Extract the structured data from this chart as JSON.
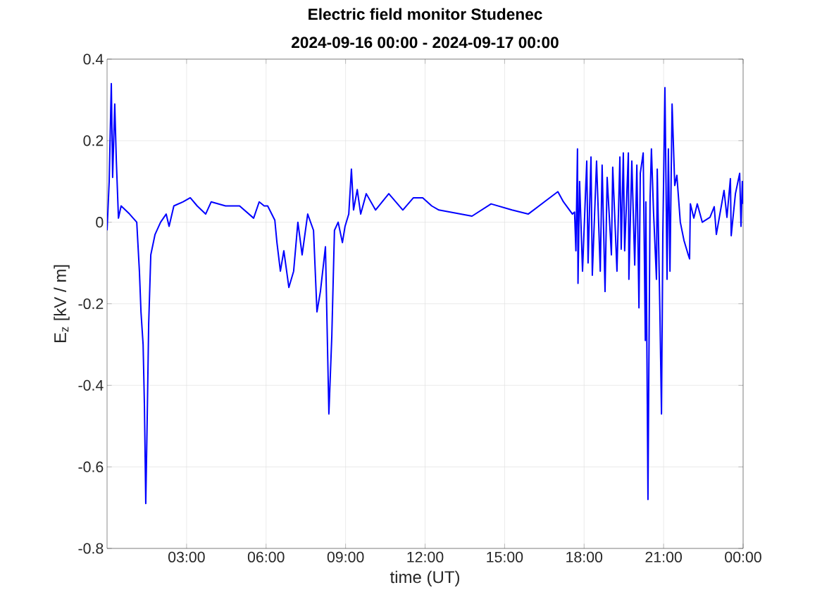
{
  "chart_data": {
    "type": "line",
    "title": "Electric field monitor Studenec",
    "subtitle": "2024-09-16 00:00 - 2024-09-17 00:00",
    "xlabel": "time (UT)",
    "ylabel": "E$_{z}$ [kV / m]",
    "xlim": [
      0,
      24
    ],
    "ylim": [
      -0.8,
      0.4
    ],
    "xticks": [
      {
        "value": 3,
        "label": "03:00"
      },
      {
        "value": 6,
        "label": "06:00"
      },
      {
        "value": 9,
        "label": "09:00"
      },
      {
        "value": 12,
        "label": "12:00"
      },
      {
        "value": 15,
        "label": "15:00"
      },
      {
        "value": 18,
        "label": "18:00"
      },
      {
        "value": 21,
        "label": "21:00"
      },
      {
        "value": 24,
        "label": "00:00"
      }
    ],
    "yticks": [
      -0.8,
      -0.6,
      -0.4,
      -0.2,
      0,
      0.2,
      0.4
    ],
    "grid": true,
    "marker": "none",
    "line_style": "solid",
    "series": [
      {
        "color": "#0000ff",
        "x": [
          0.0,
          0.08,
          0.16,
          0.21,
          0.29,
          0.35,
          0.43,
          0.53,
          0.69,
          0.85,
          1.12,
          1.22,
          1.28,
          1.36,
          1.41,
          1.46,
          1.51,
          1.57,
          1.65,
          1.81,
          2.02,
          2.23,
          2.34,
          2.52,
          2.87,
          3.14,
          3.4,
          3.72,
          3.93,
          4.47,
          5.0,
          5.53,
          5.74,
          5.93,
          6.06,
          6.33,
          6.41,
          6.54,
          6.67,
          6.86,
          7.04,
          7.2,
          7.36,
          7.57,
          7.79,
          7.92,
          8.05,
          8.24,
          8.37,
          8.48,
          8.58,
          8.72,
          8.88,
          8.98,
          9.12,
          9.22,
          9.3,
          9.44,
          9.57,
          9.78,
          10.13,
          10.63,
          11.16,
          11.56,
          11.91,
          12.25,
          12.52,
          13.77,
          14.49,
          15.28,
          15.89,
          16.5,
          17.01,
          17.22,
          17.56,
          17.64,
          17.69,
          17.75,
          17.77,
          17.83,
          17.94,
          18.1,
          18.15,
          18.26,
          18.31,
          18.47,
          18.61,
          18.68,
          18.79,
          18.87,
          19.03,
          19.08,
          19.24,
          19.35,
          19.4,
          19.48,
          19.53,
          19.67,
          19.69,
          19.8,
          19.91,
          19.99,
          20.07,
          20.12,
          20.23,
          20.31,
          20.33,
          20.41,
          20.44,
          20.49,
          20.54,
          20.62,
          20.73,
          20.76,
          20.86,
          20.92,
          20.97,
          21.05,
          21.13,
          21.18,
          21.24,
          21.32,
          21.42,
          21.5,
          21.63,
          21.77,
          21.93,
          21.98,
          22.01,
          22.14,
          22.27,
          22.46,
          22.75,
          22.91,
          22.99,
          23.28,
          23.39,
          23.52,
          23.55,
          23.71,
          23.87,
          23.92,
          23.97,
          24.0
        ],
        "values": [
          -0.02,
          0.1,
          0.34,
          0.11,
          0.29,
          0.15,
          0.01,
          0.04,
          0.03,
          0.02,
          0.0,
          -0.12,
          -0.22,
          -0.3,
          -0.45,
          -0.69,
          -0.5,
          -0.25,
          -0.08,
          -0.03,
          0.0,
          0.02,
          -0.01,
          0.04,
          0.05,
          0.06,
          0.04,
          0.02,
          0.05,
          0.04,
          0.04,
          0.01,
          0.05,
          0.04,
          0.04,
          0.005,
          -0.05,
          -0.12,
          -0.07,
          -0.16,
          -0.12,
          0.0,
          -0.08,
          0.02,
          -0.02,
          -0.22,
          -0.17,
          -0.06,
          -0.47,
          -0.28,
          -0.02,
          0.0,
          -0.05,
          -0.01,
          0.02,
          0.13,
          0.03,
          0.08,
          0.02,
          0.07,
          0.03,
          0.07,
          0.03,
          0.06,
          0.06,
          0.04,
          0.03,
          0.015,
          0.045,
          0.03,
          0.02,
          0.05,
          0.075,
          0.05,
          0.02,
          0.025,
          -0.07,
          0.18,
          -0.15,
          0.1,
          -0.12,
          0.15,
          -0.1,
          0.16,
          -0.13,
          0.15,
          -0.12,
          0.14,
          -0.17,
          0.11,
          -0.08,
          0.135,
          -0.12,
          0.16,
          -0.066,
          0.17,
          -0.07,
          0.17,
          -0.14,
          0.15,
          -0.105,
          0.14,
          -0.21,
          0.12,
          0.17,
          -0.29,
          0.05,
          -0.68,
          -0.39,
          0.06,
          0.18,
          0.025,
          -0.14,
          0.13,
          -0.22,
          -0.47,
          -0.03,
          0.33,
          -0.14,
          0.18,
          -0.12,
          0.29,
          0.09,
          0.115,
          0.0,
          -0.045,
          -0.08,
          -0.09,
          0.045,
          0.01,
          0.045,
          0.0,
          0.012,
          0.038,
          -0.03,
          0.078,
          0.012,
          0.107,
          -0.033,
          0.07,
          0.12,
          -0.01,
          0.1,
          0.045
        ]
      }
    ]
  }
}
